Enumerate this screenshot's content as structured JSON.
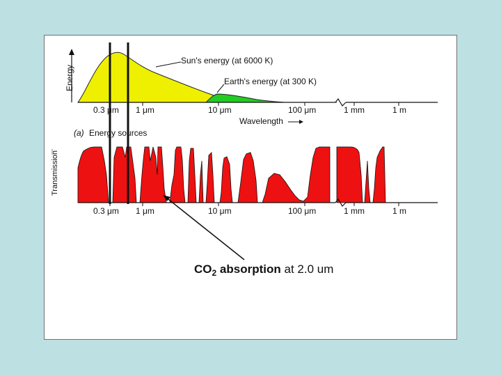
{
  "top_panel": {
    "y_axis_label": "Energy",
    "sun_label": "Sun's energy (at 6000 K)",
    "earth_label": "Earth's energy (at 300 K)",
    "x_axis_label": "Wavelength",
    "panel_label": "(a)",
    "panel_title": "Energy sources",
    "tick_labels": [
      "0.3 μm",
      "1 μm",
      "10 μm",
      "100 μm",
      "1 mm",
      "1 m"
    ]
  },
  "bottom_panel": {
    "y_axis_label": "Transmission",
    "tick_labels": [
      "0.3 μm",
      "1 μm",
      "10 μm",
      "100 μm",
      "1 mm",
      "1 m"
    ]
  },
  "caption": {
    "molecule": "CO",
    "subscript": "2",
    "bold_text": "absorption",
    "rest_text": "at 2.0 um"
  },
  "colors": {
    "sun_fill": "#eef000",
    "earth_fill": "#22cc22",
    "transmission_fill": "#ee1111",
    "background": "#bde0e3"
  }
}
